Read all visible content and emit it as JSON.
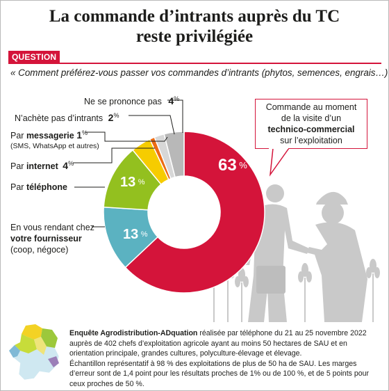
{
  "title_line1": "La commande d’intrants auprès du TC",
  "title_line2": "reste privilégiée",
  "question_tag": "QUESTION",
  "question_text": "« Comment préférez-vous passer vos commandes d’intrants (phytos, semences, engrais…) ? »",
  "callout": {
    "line1": "Commande au moment",
    "line2": "de la visite d’un",
    "line3": "technico-commercial",
    "line4": "sur l’exploitation"
  },
  "labels": {
    "nsp": "Ne se prononce pas",
    "nachete": "N’achète pas d’intrants",
    "messagerie_prefix": "Par",
    "messagerie": "messagerie",
    "messagerie_detail": "(SMS, WhatsApp et autres)",
    "internet_prefix": "Par",
    "internet": "internet",
    "telephone_prefix": "Par",
    "telephone": "téléphone",
    "fournisseur_line1": "En vous rendant chez",
    "fournisseur_line2": "votre fournisseur",
    "fournisseur_line3": "(coop, négoce)"
  },
  "values_text": {
    "nsp": "4",
    "nachete": "2",
    "messagerie": "1",
    "internet": "4",
    "tc": "63",
    "telephone": "13",
    "fournisseur": "13",
    "unit": "%"
  },
  "footer": {
    "bold": "Enquête Agrodistribution-ADquation",
    "line1": " réalisée par téléphone du 21 au 25 novembre 2022 auprès de 402 chefs d’exploitation agricole ayant au moins 50 hectares de SAU et en orientation principale, grandes cultures, polyculture-élevage et élevage.",
    "line2": "Échantillon représentatif à 98 % des exploitations de plus de 50 ha de SAU. Les marges d’erreur sont de 1,4 point pour les résultats proches de 1% ou de 100 %, et de 5 points pour ceux proches de 50 %."
  },
  "colors": {
    "red": "#d4143a",
    "green": "#93c01f",
    "teal": "#5bb2c1",
    "yellow": "#f6cc00",
    "orange": "#ec6b12",
    "light_grey": "#d7d7d7",
    "grey": "#b8b8b8",
    "silhouette": "#c9c9c9"
  },
  "chart_data": {
    "type": "pie",
    "donut": true,
    "order": "clockwise from top",
    "categories": [
      "Commande au moment de la visite d’un technico-commercial sur l’exploitation",
      "En vous rendant chez votre fournisseur (coop, négoce)",
      "Par téléphone",
      "Par internet",
      "Par messagerie",
      "N’achète pas d’intrants",
      "Ne se prononce pas"
    ],
    "values": [
      63,
      13,
      13,
      4,
      1,
      2,
      4
    ],
    "unit": "%",
    "slice_colors": [
      "#d4143a",
      "#5bb2c1",
      "#93c01f",
      "#f6cc00",
      "#ec6b12",
      "#d7d7d7",
      "#b8b8b8"
    ]
  }
}
